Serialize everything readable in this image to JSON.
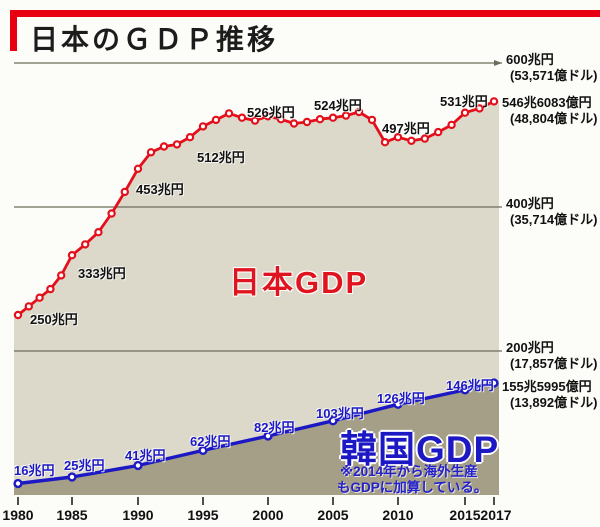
{
  "header": {
    "title": "日本のＧＤＰ推移"
  },
  "colors": {
    "accent_red": "#e3101c",
    "accent_blue": "#1c18c4",
    "area_japan": "#dcd9cb",
    "area_korea": "#a69f87",
    "gridline": "#6c6c5a"
  },
  "chart_data": {
    "type": "line",
    "title": "日本のGDP推移",
    "unit": "兆円",
    "ylim": [
      0,
      600
    ],
    "grid": "horizontal",
    "x_tick_labels": [
      "1980",
      "1985",
      "1990",
      "1995",
      "2000",
      "2005",
      "2010",
      "2015",
      "2017"
    ],
    "x_tick_years": [
      1980,
      1985,
      1990,
      1995,
      2000,
      2005,
      2010,
      2015,
      2017
    ],
    "gridlines": [
      {
        "value": 600,
        "label": "600兆円",
        "sub": "(53,571億ドル)"
      },
      {
        "value": 400,
        "label": "400兆円",
        "sub": "(35,714億ドル)"
      },
      {
        "value": 200,
        "label": "200兆円",
        "sub": "(17,857億ドル)"
      }
    ],
    "series": [
      {
        "name": "日本GDP",
        "color": "#e3101c",
        "x": [
          1980,
          1981,
          1982,
          1983,
          1984,
          1985,
          1986,
          1987,
          1988,
          1989,
          1990,
          1991,
          1992,
          1993,
          1994,
          1995,
          1996,
          1997,
          1998,
          1999,
          2000,
          2001,
          2002,
          2003,
          2004,
          2005,
          2006,
          2007,
          2008,
          2009,
          2010,
          2011,
          2012,
          2013,
          2014,
          2015,
          2016,
          2017
        ],
        "values": [
          250,
          262,
          274,
          286,
          305,
          333,
          348,
          365,
          391,
          421,
          453,
          476,
          484,
          487,
          497,
          512,
          521,
          530,
          524,
          520,
          526,
          522,
          516,
          518,
          522,
          524,
          527,
          532,
          521,
          490,
          497,
          492,
          495,
          504,
          514,
          531,
          537,
          546.6
        ],
        "end_label": "546兆6083億円",
        "end_sub": "(48,804億ドル)",
        "annotations": [
          {
            "year": 1980,
            "value": 250,
            "label": "250兆円"
          },
          {
            "year": 1985,
            "value": 333,
            "label": "333兆円"
          },
          {
            "year": 1990,
            "value": 453,
            "label": "453兆円"
          },
          {
            "year": 1995,
            "value": 512,
            "label": "512兆円"
          },
          {
            "year": 2000,
            "value": 526,
            "label": "526兆円"
          },
          {
            "year": 2005,
            "value": 524,
            "label": "524兆円"
          },
          {
            "year": 2010,
            "value": 497,
            "label": "497兆円"
          },
          {
            "year": 2015,
            "value": 531,
            "label": "531兆円"
          }
        ]
      },
      {
        "name": "韓国GDP",
        "color": "#1c18c4",
        "x": [
          1980,
          1985,
          1990,
          1995,
          2000,
          2005,
          2010,
          2015,
          2017
        ],
        "values": [
          16,
          25,
          41,
          62,
          82,
          103,
          126,
          146,
          155.6
        ],
        "end_label": "155兆5995億円",
        "end_sub": "(13,892億ドル)",
        "annotations": [
          {
            "year": 1980,
            "value": 16,
            "label": "16兆円"
          },
          {
            "year": 1985,
            "value": 25,
            "label": "25兆円"
          },
          {
            "year": 1990,
            "value": 41,
            "label": "41兆円"
          },
          {
            "year": 1995,
            "value": 62,
            "label": "62兆円"
          },
          {
            "year": 2000,
            "value": 82,
            "label": "82兆円"
          },
          {
            "year": 2005,
            "value": 103,
            "label": "103兆円"
          },
          {
            "year": 2010,
            "value": 126,
            "label": "126兆円"
          },
          {
            "year": 2015,
            "value": 146,
            "label": "146兆円"
          }
        ]
      }
    ],
    "note_line1": "※2014年から海外生産",
    "note_line2": "もGDPに加算している。"
  }
}
